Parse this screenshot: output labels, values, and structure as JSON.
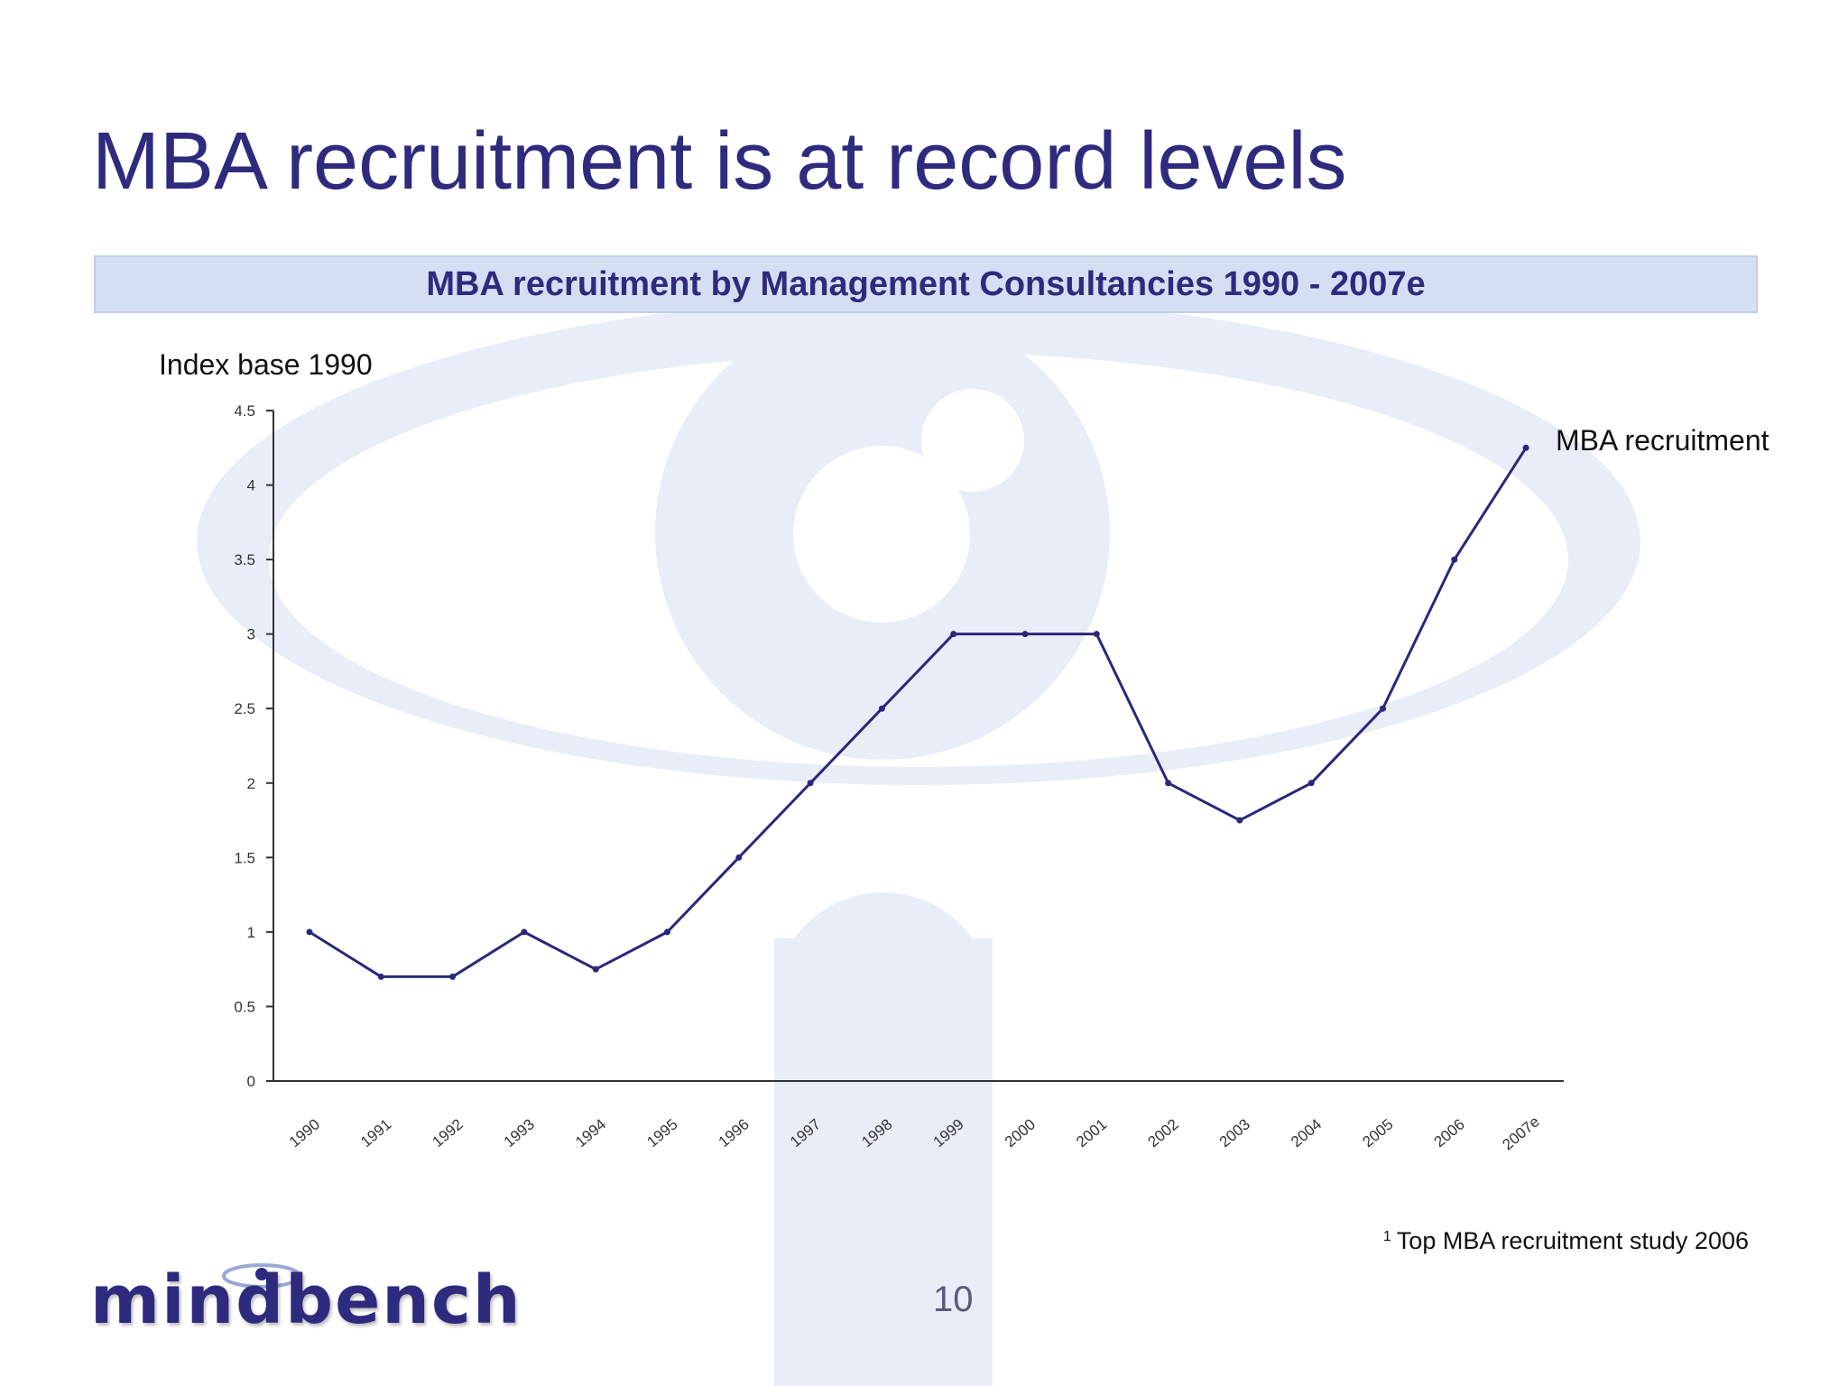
{
  "slide": {
    "title": "MBA recruitment is at record levels",
    "page_number": "10",
    "footnote_marker": "1",
    "footnote": "Top MBA recruitment study 2006",
    "logo_text": "mindbench"
  },
  "colors": {
    "title": "#2e2a7e",
    "banner_bg": "#d5dff3",
    "line": "#2b2779",
    "watermark": "#e8ecf7"
  },
  "chart_data": {
    "type": "line",
    "title": "MBA recruitment by Management Consultancies 1990 - 2007e",
    "ylabel": "Index base 1990",
    "xlabel": "",
    "categories": [
      "1990",
      "1991",
      "1992",
      "1993",
      "1994",
      "1995",
      "1996",
      "1997",
      "1998",
      "1999",
      "2000",
      "2001",
      "2002",
      "2003",
      "2004",
      "2005",
      "2006",
      "2007e"
    ],
    "series": [
      {
        "name": "MBA recruitment",
        "values": [
          1,
          0.7,
          0.7,
          1,
          0.75,
          1,
          1.5,
          2,
          2.5,
          3,
          3,
          3,
          2,
          1.75,
          2,
          2.5,
          3.5,
          4.25
        ]
      }
    ],
    "ylim": [
      0,
      4.5
    ],
    "yticks": [
      "0",
      "0.5",
      "1",
      "1.5",
      "2",
      "2.5",
      "3",
      "3.5",
      "4",
      "4.5"
    ],
    "grid": false,
    "legend": "label at end of line"
  }
}
